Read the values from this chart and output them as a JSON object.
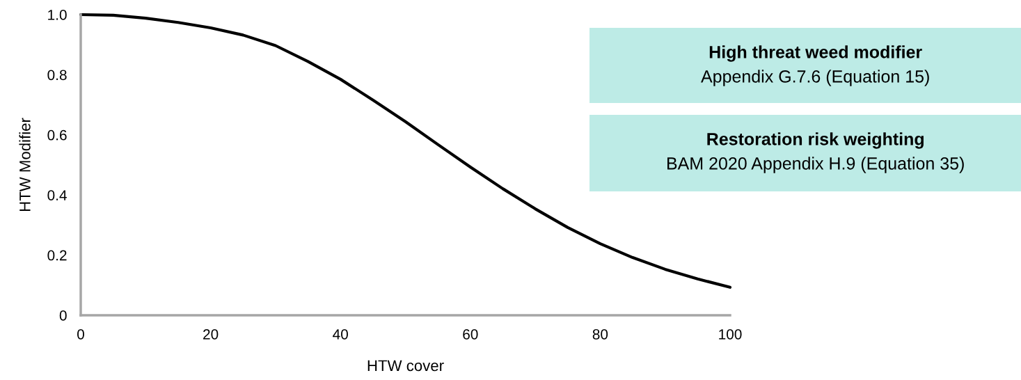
{
  "chart_data": {
    "type": "line",
    "xlabel": "HTW cover",
    "ylabel": "HTW Modifier",
    "x": [
      0,
      5,
      10,
      15,
      20,
      25,
      30,
      35,
      40,
      45,
      50,
      55,
      60,
      65,
      70,
      75,
      80,
      85,
      90,
      95,
      100
    ],
    "series": [
      {
        "color": "#000000",
        "values": [
          1.0,
          0.998,
          0.988,
          0.974,
          0.956,
          0.932,
          0.897,
          0.844,
          0.785,
          0.716,
          0.644,
          0.568,
          0.493,
          0.421,
          0.354,
          0.292,
          0.238,
          0.192,
          0.153,
          0.121,
          0.093
        ]
      }
    ],
    "xlim": [
      0,
      100
    ],
    "ylim": [
      0,
      1.0
    ],
    "xticks": [
      0,
      20,
      40,
      60,
      80,
      100
    ],
    "yticks": [
      0,
      0.2,
      0.4,
      0.6,
      0.8,
      {
        "value": 1.0,
        "label": "1.0"
      }
    ],
    "grid": false,
    "legend": false,
    "marker": "none",
    "line_style": "solid",
    "annotations": [
      "High threat weed modifier",
      "Appendix G.7.6 (Equation 15)",
      "Restoration risk weighting",
      "BAM 2020 Appendix H.9 (Equation 35)"
    ]
  }
}
